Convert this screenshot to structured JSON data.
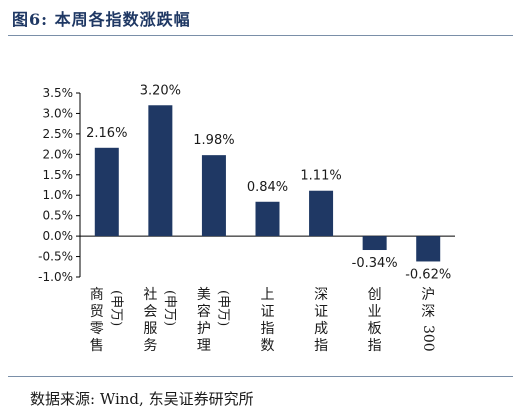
{
  "title": "图6:  本周各指数涨跌幅",
  "source": "数据来源:  Wind,  东吴证券研究所",
  "colors": {
    "bar": "#1f3864",
    "axis": "#000000"
  },
  "chart_data": {
    "type": "bar",
    "categories": [
      "商贸零售（申万）",
      "社会服务（申万）",
      "美容护理（申万）",
      "上证指数",
      "深证成指",
      "创业板指",
      "沪深300"
    ],
    "category_lines": [
      [
        "商",
        "贸",
        "零",
        "售"
      ],
      [
        "社",
        "会",
        "服",
        "务"
      ],
      [
        "美",
        "容",
        "护",
        "理"
      ],
      [
        "上",
        "证",
        "指",
        "数"
      ],
      [
        "深",
        "证",
        "成",
        "指"
      ],
      [
        "创",
        "业",
        "板",
        "指"
      ],
      [
        "沪",
        "深",
        "300"
      ]
    ],
    "category_suffix": [
      "(申万)",
      "(申万)",
      "(申万)",
      "",
      "",
      "",
      ""
    ],
    "values": [
      2.16,
      3.2,
      1.98,
      0.84,
      1.11,
      -0.34,
      -0.62
    ],
    "value_labels": [
      "2.16%",
      "3.20%",
      "1.98%",
      "0.84%",
      "1.11%",
      "-0.34%",
      "-0.62%"
    ],
    "y_ticks": [
      3.5,
      3.0,
      2.5,
      2.0,
      1.5,
      1.0,
      0.5,
      0.0,
      -0.5,
      -1.0
    ],
    "y_tick_labels": [
      "3.5%",
      "3.0%",
      "2.5%",
      "2.0%",
      "1.5%",
      "1.0%",
      "0.5%",
      "0.0%",
      "-0.5%",
      "-1.0%"
    ],
    "ylim": [
      -1.0,
      3.5
    ],
    "grid": false
  }
}
